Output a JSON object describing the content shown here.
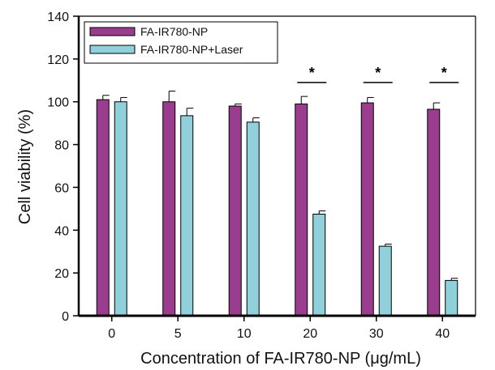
{
  "chart_data": {
    "type": "bar",
    "title": "",
    "xlabel": "Concentration of FA-IR780-NP (μg/mL)",
    "ylabel": "Cell viability (%)",
    "ylim": [
      0,
      140
    ],
    "yticks": [
      0,
      20,
      40,
      60,
      80,
      100,
      120,
      140
    ],
    "categories": [
      "0",
      "5",
      "10",
      "20",
      "30",
      "40"
    ],
    "series": [
      {
        "name": "FA-IR780-NP",
        "color": "#9b3d8e",
        "values": [
          101,
          100,
          98,
          99,
          99.5,
          96.5
        ],
        "errors": [
          2,
          5,
          1,
          3.5,
          2.5,
          3
        ]
      },
      {
        "name": "FA-IR780-NP+Laser",
        "color": "#8fd0da",
        "values": [
          100,
          93.5,
          90.5,
          47.5,
          32.5,
          16.5
        ],
        "errors": [
          2,
          3.5,
          2,
          1.5,
          1,
          1
        ]
      }
    ],
    "significance": [
      {
        "category": "20",
        "label": "*"
      },
      {
        "category": "30",
        "label": "*"
      },
      {
        "category": "40",
        "label": "*"
      }
    ],
    "legend_position": "top-left",
    "grid": false
  }
}
